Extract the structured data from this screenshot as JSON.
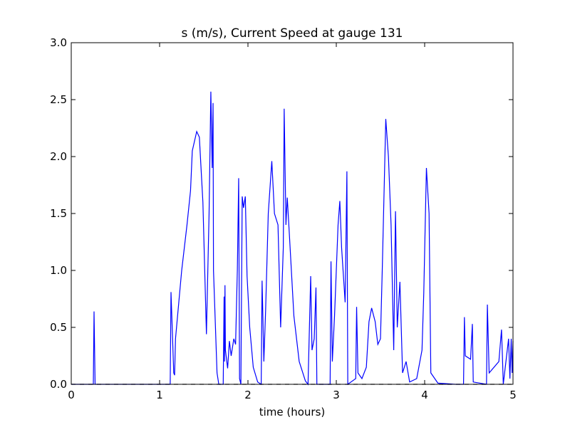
{
  "chart_data": {
    "type": "line",
    "title": "s (m/s), Current Speed at gauge 131",
    "x_label": "time (hours)",
    "xlim": [
      0,
      5
    ],
    "xticks": [
      0,
      1,
      2,
      3,
      4,
      5
    ],
    "ylim": [
      0,
      3
    ],
    "yticks": [
      {
        "value": 0,
        "label": "0.0"
      },
      {
        "value": 0.5,
        "label": "0.5"
      },
      {
        "value": 1,
        "label": "1.0"
      },
      {
        "value": 1.5,
        "label": "1.5"
      },
      {
        "value": 2,
        "label": "2.0"
      },
      {
        "value": 2.5,
        "label": "2.5"
      },
      {
        "value": 3,
        "label": "3.0"
      }
    ],
    "series": [
      {
        "color": "#0000ff",
        "dash": "solid",
        "x": [
          0,
          0.25,
          0.258,
          0.27,
          1.12,
          1.129,
          1.16,
          1.17,
          1.18,
          1.25,
          1.31,
          1.35,
          1.37,
          1.42,
          1.45,
          1.49,
          1.53,
          1.56,
          1.58,
          1.595,
          1.605,
          1.61,
          1.65,
          1.67,
          1.72,
          1.73,
          1.735,
          1.74,
          1.745,
          1.77,
          1.79,
          1.81,
          1.84,
          1.86,
          1.88,
          1.895,
          1.905,
          1.92,
          1.935,
          1.95,
          1.97,
          1.99,
          2.02,
          2.06,
          2.11,
          2.15,
          2.16,
          2.18,
          2.2,
          2.23,
          2.27,
          2.3,
          2.34,
          2.37,
          2.4,
          2.41,
          2.43,
          2.445,
          2.47,
          2.52,
          2.58,
          2.65,
          2.68,
          2.71,
          2.725,
          2.75,
          2.77,
          2.78,
          2.93,
          2.94,
          2.955,
          2.98,
          3.02,
          3.04,
          3.06,
          3.1,
          3.12,
          3.13,
          3.22,
          3.23,
          3.245,
          3.29,
          3.34,
          3.37,
          3.4,
          3.44,
          3.47,
          3.5,
          3.52,
          3.56,
          3.59,
          3.62,
          3.65,
          3.67,
          3.69,
          3.72,
          3.75,
          3.79,
          3.83,
          3.91,
          3.97,
          3.99,
          4.02,
          4.05,
          4.07,
          4.15,
          4.35,
          4.44,
          4.45,
          4.46,
          4.52,
          4.54,
          4.55,
          4.7,
          4.71,
          4.73,
          4.84,
          4.87,
          4.88,
          4.89,
          4.95,
          4.965,
          4.98,
          4.99,
          5
        ],
        "values": [
          0,
          0,
          0.64,
          0,
          0,
          0.81,
          0.1,
          0.08,
          0.4,
          1.0,
          1.4,
          1.7,
          2.05,
          2.22,
          2.17,
          1.6,
          0.44,
          1.5,
          2.57,
          1.9,
          2.47,
          1.0,
          0.1,
          0,
          0,
          0.77,
          0.2,
          0.87,
          0.3,
          0.14,
          0.38,
          0.25,
          0.4,
          0.35,
          1.0,
          1.81,
          0.05,
          0,
          1.65,
          1.55,
          1.65,
          0.95,
          0.5,
          0.15,
          0.02,
          0,
          0.91,
          0.2,
          0.65,
          1.5,
          1.96,
          1.5,
          1.4,
          0.5,
          1.2,
          2.42,
          1.4,
          1.64,
          1.3,
          0.6,
          0.2,
          0.03,
          0,
          0.95,
          0.3,
          0.4,
          0.85,
          0,
          0,
          1.08,
          0.2,
          0.6,
          1.4,
          1.61,
          1.2,
          0.72,
          1.87,
          0,
          0.05,
          0.68,
          0.1,
          0.05,
          0.15,
          0.55,
          0.67,
          0.55,
          0.35,
          0.4,
          1.0,
          2.33,
          2.0,
          1.4,
          0.3,
          1.52,
          0.5,
          0.9,
          0.1,
          0.2,
          0.02,
          0.05,
          0.3,
          0.8,
          1.9,
          1.5,
          0.1,
          0.01,
          0,
          0,
          0.59,
          0.25,
          0.22,
          0.53,
          0.02,
          0,
          0.7,
          0.1,
          0.2,
          0.48,
          0.25,
          0,
          0.4,
          0.05,
          0.4,
          0.1,
          0.38
        ]
      },
      {
        "color": "#000000",
        "dash": "dashed",
        "x": [
          0,
          5
        ],
        "values": [
          0,
          0
        ]
      }
    ]
  }
}
